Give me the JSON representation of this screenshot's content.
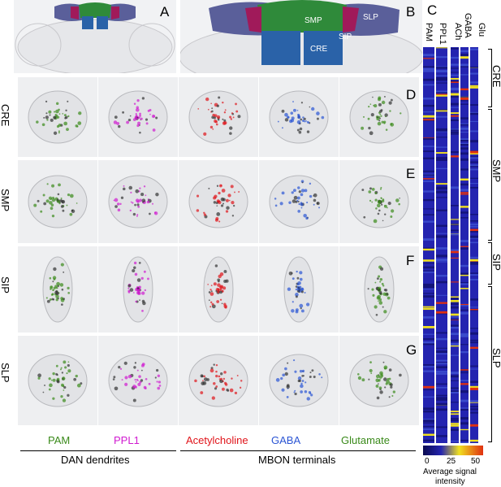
{
  "panel_letters": {
    "a": "A",
    "b": "B",
    "c": "C",
    "d": "D",
    "e": "E",
    "f": "F",
    "g": "G"
  },
  "region_labels_b": {
    "smp": "SMP",
    "slp": "SLP",
    "sip": "SIP",
    "cre": "CRE"
  },
  "row_labels": [
    "CRE",
    "SMP",
    "SIP",
    "SLP"
  ],
  "columns": [
    {
      "label": "PAM",
      "color": "#3a8a1a"
    },
    {
      "label": "PPL1",
      "color": "#d01ad0"
    },
    {
      "label": "Acetylcholine",
      "color": "#e0141a"
    },
    {
      "label": "GABA",
      "color": "#2b55d4"
    },
    {
      "label": "Glutamate",
      "color": "#3a8a1a"
    }
  ],
  "groups": {
    "dan": "DAN dendrites",
    "mbon": "MBON terminals"
  },
  "heatmap": {
    "col_labels": [
      "PAM",
      "PPL1",
      "ACh",
      "GABA",
      "Glu"
    ],
    "regions": [
      "CRE",
      "SMP",
      "SIP",
      "SLP"
    ],
    "colorbar": {
      "min": "0",
      "mid": "25",
      "max": "50",
      "caption_line1": "Average signal",
      "caption_line2": "intensity"
    }
  },
  "colors": {
    "heat_low": "#14147a",
    "heat_base": "#2424b0",
    "heat_mid": "#f0e020",
    "heat_high": "#e03010"
  }
}
